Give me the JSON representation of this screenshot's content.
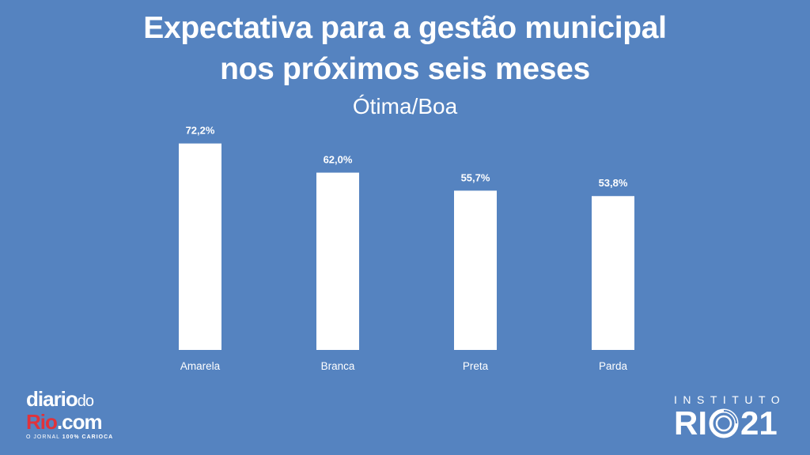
{
  "chart_data": {
    "type": "bar",
    "title_lines": [
      "Expectativa para a gestão municipal",
      "nos próximos seis meses"
    ],
    "subtitle": "Ótima/Boa",
    "categories": [
      "Amarela",
      "Branca",
      "Preta",
      "Parda"
    ],
    "values": [
      72.2,
      62.0,
      55.7,
      53.8
    ],
    "value_labels": [
      "72,2%",
      "62,0%",
      "55,7%",
      "53,8%"
    ],
    "ylim": [
      0,
      80
    ],
    "grid": false,
    "bar_color": "#FFFFFF",
    "background_color": "#5583C0"
  },
  "logos": {
    "left": {
      "line1_a": "diario",
      "line1_b": "do",
      "line2_a": "Rio",
      "line2_b": ".com",
      "tagline_a": "O JORNAL ",
      "tagline_b": "100% CARIOCA",
      "accent_color": "#E0323A"
    },
    "right": {
      "top": "INSTITUTO",
      "bottom_a": "RI",
      "bottom_b": "21"
    }
  }
}
